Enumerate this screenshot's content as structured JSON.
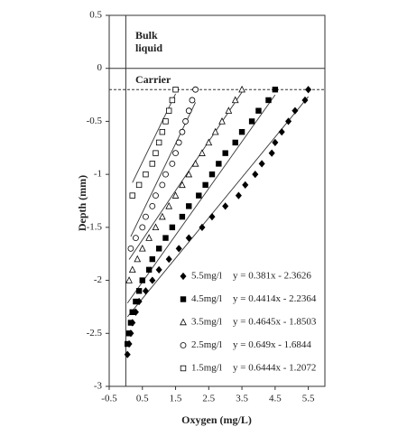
{
  "chart_data": {
    "type": "scatter",
    "xlabel": "Oxygen  (mg/L)",
    "ylabel": "Depth (mm)",
    "xlim": [
      -0.5,
      6
    ],
    "ylim": [
      -3,
      0.5
    ],
    "xticks": [
      -0.5,
      0.5,
      1.5,
      2.5,
      3.5,
      4.5,
      5.5
    ],
    "yticks": [
      0.5,
      0,
      -0.5,
      -1,
      -1.5,
      -2,
      -2.5,
      -3
    ],
    "reference_lines": [
      {
        "y": 0,
        "style": "solid"
      },
      {
        "y": -0.2,
        "style": "dashed"
      }
    ],
    "vline": 0,
    "region_labels": {
      "bulk": [
        "Bulk",
        "liquid"
      ],
      "carrier": "Carrier"
    },
    "series": [
      {
        "name": "5.5mg/l",
        "marker": "diamond",
        "filled": true,
        "color": "#000",
        "x": [
          5.5,
          5.4,
          5.1,
          4.9,
          4.7,
          4.5,
          4.4,
          4.1,
          3.9,
          3.6,
          3.4,
          3.0,
          2.6,
          2.3,
          1.9,
          1.6,
          1.3,
          1.0,
          0.8,
          0.6,
          0.4,
          0.3,
          0.2,
          0.15,
          0.1,
          0.05
        ],
        "values": [
          -0.2,
          -0.3,
          -0.4,
          -0.5,
          -0.6,
          -0.7,
          -0.8,
          -0.9,
          -1.0,
          -1.1,
          -1.2,
          -1.3,
          -1.4,
          -1.5,
          -1.6,
          -1.7,
          -1.8,
          -1.9,
          -2.0,
          -2.1,
          -2.2,
          -2.3,
          -2.4,
          -2.5,
          -2.6,
          -2.7
        ],
        "trendline": {
          "slope": 0.381,
          "intercept": -2.3626,
          "label": "y = 0.381x - 2.3626"
        }
      },
      {
        "name": "4.5mg/l",
        "marker": "square",
        "filled": true,
        "color": "#000",
        "x": [
          4.5,
          4.3,
          4.0,
          3.8,
          3.5,
          3.3,
          3.0,
          2.8,
          2.6,
          2.4,
          2.2,
          1.9,
          1.7,
          1.4,
          1.2,
          1.0,
          0.8,
          0.7,
          0.5,
          0.4,
          0.3,
          0.2,
          0.15,
          0.1,
          0.05
        ],
        "values": [
          -0.2,
          -0.3,
          -0.4,
          -0.5,
          -0.6,
          -0.7,
          -0.8,
          -0.9,
          -1.0,
          -1.1,
          -1.2,
          -1.3,
          -1.4,
          -1.5,
          -1.6,
          -1.7,
          -1.8,
          -1.9,
          -2.0,
          -2.1,
          -2.2,
          -2.3,
          -2.4,
          -2.5,
          -2.6
        ],
        "trendline": {
          "slope": 0.4414,
          "intercept": -2.2364,
          "label": "y = 0.4414x - 2.2364"
        }
      },
      {
        "name": "3.5mg/l",
        "marker": "triangle",
        "filled": false,
        "color": "#000",
        "x": [
          3.5,
          3.3,
          3.1,
          2.9,
          2.7,
          2.5,
          2.3,
          2.1,
          1.9,
          1.7,
          1.5,
          1.3,
          1.1,
          0.9,
          0.7,
          0.5,
          0.35,
          0.2,
          0.1
        ],
        "values": [
          -0.2,
          -0.3,
          -0.4,
          -0.5,
          -0.6,
          -0.7,
          -0.8,
          -0.9,
          -1.0,
          -1.1,
          -1.2,
          -1.3,
          -1.4,
          -1.5,
          -1.6,
          -1.7,
          -1.8,
          -1.9,
          -2.0
        ],
        "trendline": {
          "slope": 0.4645,
          "intercept": -1.8503,
          "label": "y = 0.4645x - 1.8503"
        }
      },
      {
        "name": "2.5mg/l",
        "marker": "circle",
        "filled": false,
        "color": "#000",
        "x": [
          2.1,
          2.0,
          1.9,
          1.8,
          1.7,
          1.6,
          1.5,
          1.4,
          1.2,
          1.1,
          0.9,
          0.8,
          0.6,
          0.5,
          0.3,
          0.15
        ],
        "values": [
          -0.2,
          -0.3,
          -0.4,
          -0.5,
          -0.6,
          -0.7,
          -0.8,
          -0.9,
          -1.0,
          -1.1,
          -1.2,
          -1.3,
          -1.4,
          -1.5,
          -1.6,
          -1.7
        ],
        "trendline": {
          "slope": 0.649,
          "intercept": -1.6844,
          "label": "y = 0.649x - 1.6844"
        }
      },
      {
        "name": "1.5mg/l",
        "marker": "square",
        "filled": false,
        "color": "#000",
        "x": [
          1.5,
          1.4,
          1.3,
          1.2,
          1.1,
          1.0,
          0.9,
          0.8,
          0.6,
          0.4,
          0.2
        ],
        "values": [
          -0.2,
          -0.3,
          -0.4,
          -0.5,
          -0.6,
          -0.7,
          -0.8,
          -0.9,
          -1.0,
          -1.1,
          -1.2
        ],
        "trendline": {
          "slope": 0.6444,
          "intercept": -1.2072,
          "label": "y = 0.6444x - 1.2072"
        }
      }
    ]
  }
}
